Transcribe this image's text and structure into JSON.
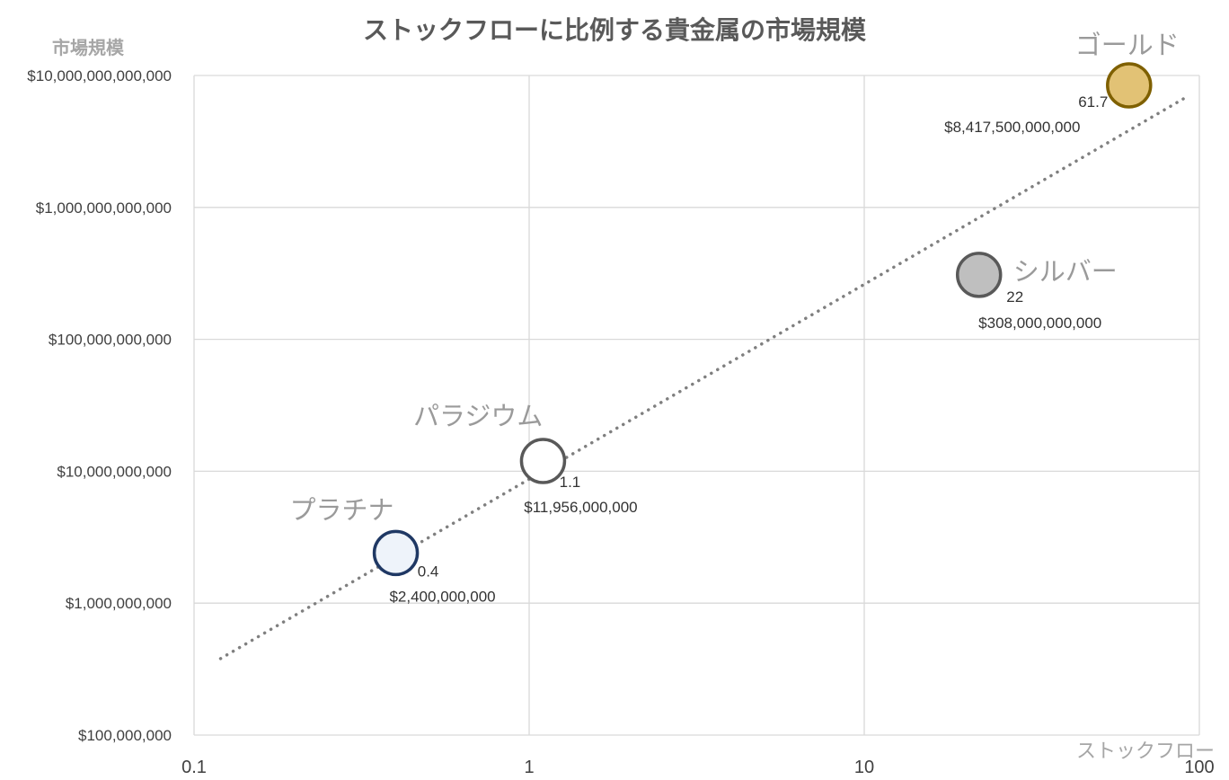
{
  "chart_data": {
    "type": "scatter",
    "title": "ストックフローに比例する貴金属の市場規模",
    "xlabel": "ストックフロー",
    "ylabel": "市場規模",
    "xscale": "log",
    "yscale": "log",
    "xlim": [
      0.1,
      100
    ],
    "ylim": [
      100000000,
      10000000000000
    ],
    "x_ticks": [
      "0.1",
      "1",
      "10",
      "100"
    ],
    "y_ticks": [
      "$100,000,000",
      "$1,000,000,000",
      "$10,000,000,000",
      "$100,000,000,000",
      "$1,000,000,000,000",
      "$10,000,000,000,000"
    ],
    "grid": true,
    "legend": "none",
    "points": [
      {
        "name": "プラチナ",
        "x": 0.4,
        "y": 2400000000,
        "x_label": "0.4",
        "y_label": "$2,400,000,000",
        "fill": "#eef3fa",
        "stroke": "#1f3864"
      },
      {
        "name": "パラジウム",
        "x": 1.1,
        "y": 11956000000,
        "x_label": "1.1",
        "y_label": "$11,956,000,000",
        "fill": "#ffffff",
        "stroke": "#595959"
      },
      {
        "name": "シルバー",
        "x": 22,
        "y": 308000000000,
        "x_label": "22",
        "y_label": "$308,000,000,000",
        "fill": "#bfbfbf",
        "stroke": "#595959"
      },
      {
        "name": "ゴールド",
        "x": 61.7,
        "y": 8417500000000,
        "x_label": "61.7",
        "y_label": "$8,417,500,000,000",
        "fill": "#e2c275",
        "stroke": "#7f6000"
      }
    ],
    "trendline": {
      "type": "power",
      "style": "dotted",
      "color": "#7f7f7f",
      "x_range": [
        0.12,
        90
      ],
      "y_range": [
        380000000,
        6700000000000
      ]
    }
  }
}
